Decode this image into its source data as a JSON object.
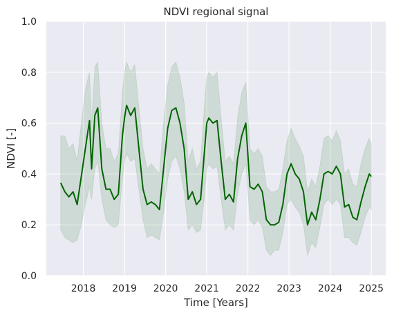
{
  "chart_data": {
    "type": "line",
    "title": "NDVI regional signal",
    "xlabel": "Time [Years]",
    "ylabel": "NDVI [-]",
    "xlim": [
      2017.1,
      2025.35
    ],
    "ylim": [
      0.0,
      1.0
    ],
    "x_ticks": [
      2018,
      2019,
      2020,
      2021,
      2022,
      2023,
      2024,
      2025
    ],
    "x_tick_labels": [
      "2018",
      "2019",
      "2020",
      "2021",
      "2022",
      "2023",
      "2024",
      "2025"
    ],
    "y_ticks": [
      0.0,
      0.2,
      0.4,
      0.6,
      0.8,
      1.0
    ],
    "y_tick_labels": [
      "0.0",
      "0.2",
      "0.4",
      "0.6",
      "0.8",
      "1.0"
    ],
    "grid": true,
    "legend": "none",
    "colors": {
      "line": "#006400",
      "band": "#2e7d32",
      "background": "#eaeaf2",
      "grid": "#ffffff"
    },
    "series": [
      {
        "x": [
          2017.45,
          2017.55,
          2017.65,
          2017.75,
          2017.85,
          2017.95,
          2018.05,
          2018.15,
          2018.2,
          2018.28,
          2018.35,
          2018.45,
          2018.55,
          2018.65,
          2018.75,
          2018.85,
          2018.95,
          2019.0,
          2019.05,
          2019.15,
          2019.25,
          2019.35,
          2019.45,
          2019.55,
          2019.65,
          2019.75,
          2019.85,
          2019.95,
          2020.05,
          2020.15,
          2020.25,
          2020.35,
          2020.45,
          2020.55,
          2020.65,
          2020.75,
          2020.85,
          2020.95,
          2021.0,
          2021.05,
          2021.15,
          2021.25,
          2021.35,
          2021.45,
          2021.55,
          2021.65,
          2021.75,
          2021.85,
          2021.95,
          2022.05,
          2022.15,
          2022.25,
          2022.35,
          2022.45,
          2022.55,
          2022.65,
          2022.75,
          2022.85,
          2022.95,
          2023.05,
          2023.15,
          2023.25,
          2023.35,
          2023.45,
          2023.55,
          2023.65,
          2023.75,
          2023.85,
          2023.95,
          2024.05,
          2024.15,
          2024.25,
          2024.35,
          2024.45,
          2024.55,
          2024.65,
          2024.75,
          2024.85,
          2024.95,
          2025.0
        ],
        "y": [
          0.365,
          0.33,
          0.31,
          0.33,
          0.28,
          0.39,
          0.5,
          0.61,
          0.42,
          0.63,
          0.66,
          0.42,
          0.34,
          0.34,
          0.3,
          0.32,
          0.55,
          0.62,
          0.67,
          0.63,
          0.66,
          0.5,
          0.34,
          0.28,
          0.29,
          0.28,
          0.26,
          0.42,
          0.58,
          0.65,
          0.66,
          0.6,
          0.5,
          0.3,
          0.33,
          0.28,
          0.3,
          0.5,
          0.6,
          0.62,
          0.6,
          0.61,
          0.45,
          0.3,
          0.32,
          0.29,
          0.46,
          0.55,
          0.6,
          0.35,
          0.34,
          0.36,
          0.33,
          0.22,
          0.2,
          0.2,
          0.21,
          0.28,
          0.4,
          0.44,
          0.4,
          0.38,
          0.33,
          0.2,
          0.25,
          0.22,
          0.3,
          0.4,
          0.41,
          0.4,
          0.43,
          0.4,
          0.27,
          0.28,
          0.23,
          0.22,
          0.29,
          0.35,
          0.4,
          0.39
        ],
        "lower": [
          0.18,
          0.15,
          0.14,
          0.13,
          0.14,
          0.2,
          0.28,
          0.35,
          0.3,
          0.42,
          0.45,
          0.3,
          0.22,
          0.2,
          0.19,
          0.2,
          0.38,
          0.45,
          0.48,
          0.45,
          0.46,
          0.34,
          0.22,
          0.15,
          0.16,
          0.15,
          0.14,
          0.25,
          0.38,
          0.45,
          0.47,
          0.42,
          0.33,
          0.18,
          0.2,
          0.17,
          0.18,
          0.32,
          0.42,
          0.44,
          0.42,
          0.43,
          0.3,
          0.18,
          0.2,
          0.18,
          0.32,
          0.4,
          0.44,
          0.22,
          0.2,
          0.22,
          0.19,
          0.1,
          0.08,
          0.1,
          0.1,
          0.17,
          0.28,
          0.3,
          0.27,
          0.25,
          0.2,
          0.08,
          0.13,
          0.11,
          0.19,
          0.28,
          0.3,
          0.28,
          0.3,
          0.28,
          0.15,
          0.15,
          0.13,
          0.12,
          0.17,
          0.23,
          0.27,
          0.26
        ],
        "upper": [
          0.55,
          0.55,
          0.5,
          0.52,
          0.45,
          0.6,
          0.73,
          0.8,
          0.6,
          0.82,
          0.84,
          0.6,
          0.5,
          0.5,
          0.45,
          0.48,
          0.72,
          0.8,
          0.84,
          0.8,
          0.83,
          0.66,
          0.5,
          0.42,
          0.44,
          0.42,
          0.4,
          0.6,
          0.75,
          0.82,
          0.84,
          0.78,
          0.68,
          0.45,
          0.5,
          0.42,
          0.45,
          0.68,
          0.78,
          0.8,
          0.78,
          0.8,
          0.62,
          0.45,
          0.47,
          0.44,
          0.62,
          0.72,
          0.76,
          0.5,
          0.48,
          0.5,
          0.47,
          0.35,
          0.33,
          0.33,
          0.34,
          0.42,
          0.53,
          0.58,
          0.54,
          0.51,
          0.47,
          0.33,
          0.38,
          0.35,
          0.43,
          0.54,
          0.55,
          0.53,
          0.57,
          0.53,
          0.4,
          0.42,
          0.36,
          0.35,
          0.44,
          0.5,
          0.54,
          0.52
        ]
      }
    ]
  }
}
